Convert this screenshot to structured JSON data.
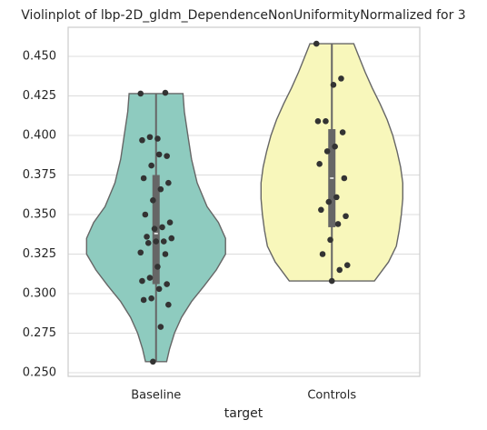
{
  "chart_data": {
    "type": "violin",
    "title": "Violinplot of lbp-2D_gldm_DependenceNonUniformityNormalized for 3",
    "xlabel": "target",
    "categories": [
      "Baseline",
      "Controls"
    ],
    "ylim": [
      0.2477,
      0.4684
    ],
    "yticks": [
      {
        "value": 0.25,
        "label": "0.250"
      },
      {
        "value": 0.275,
        "label": "0.275"
      },
      {
        "value": 0.3,
        "label": "0.300"
      },
      {
        "value": 0.325,
        "label": "0.325"
      },
      {
        "value": 0.35,
        "label": "0.350"
      },
      {
        "value": 0.375,
        "label": "0.375"
      },
      {
        "value": 0.4,
        "label": "0.400"
      },
      {
        "value": 0.425,
        "label": "0.425"
      },
      {
        "value": 0.45,
        "label": "0.450"
      }
    ],
    "grid": true,
    "violins": [
      {
        "color": "#8ecbbf",
        "density_y": [
          0.4265,
          0.415,
          0.4,
          0.385,
          0.37,
          0.355,
          0.345,
          0.335,
          0.325,
          0.315,
          0.305,
          0.295,
          0.285,
          0.275,
          0.265,
          0.257
        ],
        "density_width": [
          0.38,
          0.4,
          0.45,
          0.5,
          0.58,
          0.72,
          0.88,
          0.98,
          0.98,
          0.85,
          0.68,
          0.5,
          0.36,
          0.26,
          0.19,
          0.15
        ],
        "box": {
          "whisker_low": 0.257,
          "q1": 0.306,
          "median": 0.338,
          "q3": 0.375,
          "whisker_high": 0.4265
        },
        "points": [
          0.4265,
          0.427,
          0.398,
          0.399,
          0.397,
          0.387,
          0.388,
          0.381,
          0.373,
          0.37,
          0.366,
          0.359,
          0.35,
          0.345,
          0.342,
          0.341,
          0.336,
          0.335,
          0.333,
          0.333,
          0.332,
          0.326,
          0.325,
          0.317,
          0.31,
          0.308,
          0.306,
          0.303,
          0.297,
          0.296,
          0.293,
          0.279,
          0.257
        ]
      },
      {
        "color": "#f8f7bb",
        "density_y": [
          0.458,
          0.45,
          0.44,
          0.43,
          0.42,
          0.41,
          0.4,
          0.39,
          0.38,
          0.37,
          0.36,
          0.35,
          0.34,
          0.33,
          0.32,
          0.308
        ],
        "density_width": [
          0.31,
          0.38,
          0.47,
          0.57,
          0.68,
          0.78,
          0.86,
          0.92,
          0.97,
          1.0,
          1.0,
          0.98,
          0.95,
          0.91,
          0.8,
          0.6
        ],
        "box": {
          "whisker_low": 0.308,
          "q1": 0.342,
          "median": 0.373,
          "q3": 0.404,
          "whisker_high": 0.458
        },
        "points": [
          0.458,
          0.436,
          0.432,
          0.409,
          0.409,
          0.402,
          0.393,
          0.39,
          0.382,
          0.373,
          0.361,
          0.358,
          0.353,
          0.349,
          0.344,
          0.334,
          0.325,
          0.318,
          0.315,
          0.308
        ]
      }
    ]
  }
}
